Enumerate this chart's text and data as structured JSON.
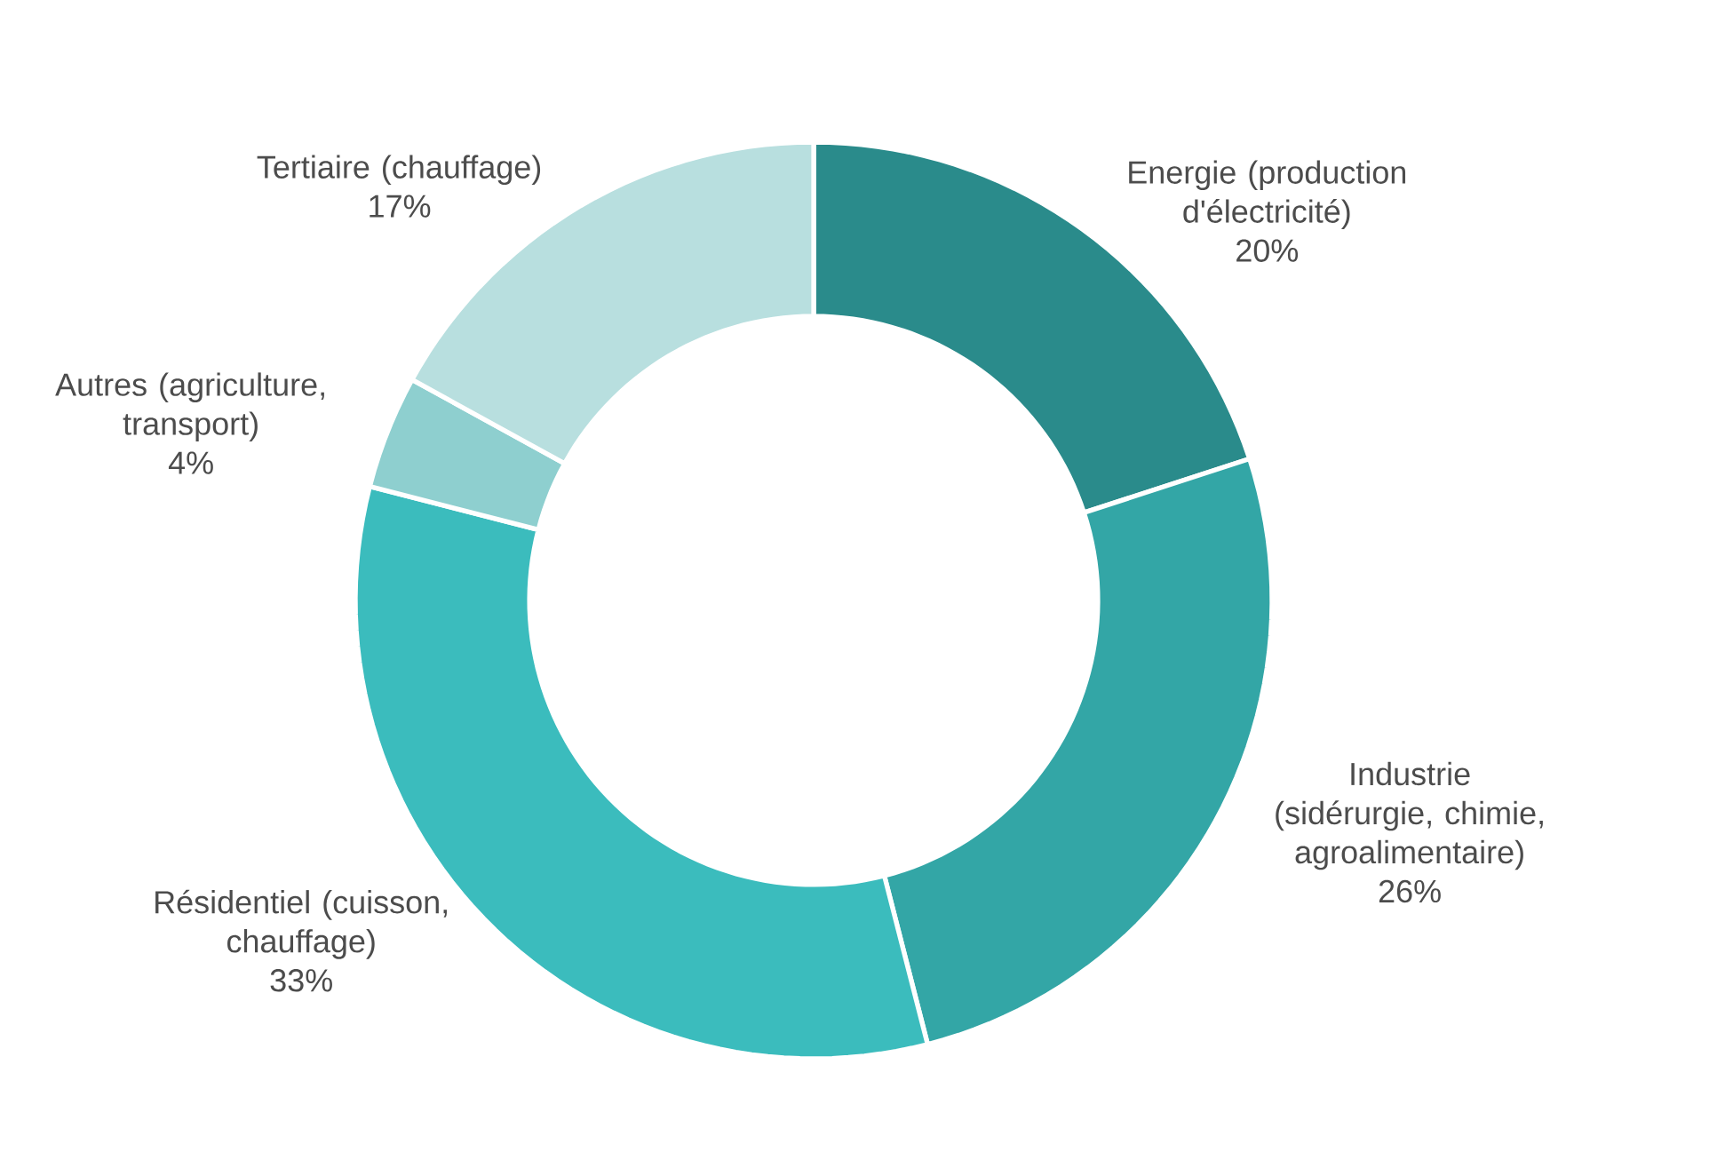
{
  "chart_data": {
    "type": "donut",
    "categories": [
      "Energie (production d'électricité)",
      "Industrie (sidérurgie, chimie, agroalimentaire)",
      "Résidentiel (cuisson, chauffage)",
      "Autres (agriculture, transport)",
      "Tertiaire (chauffage)"
    ],
    "values": [
      20,
      26,
      33,
      4,
      17
    ],
    "value_labels": [
      "20%",
      "26%",
      "33%",
      "4%",
      "17%"
    ],
    "colors": [
      "#2a8b8b",
      "#33a6a6",
      "#3bbcbd",
      "#8ecfcf",
      "#b8dfdf"
    ]
  }
}
